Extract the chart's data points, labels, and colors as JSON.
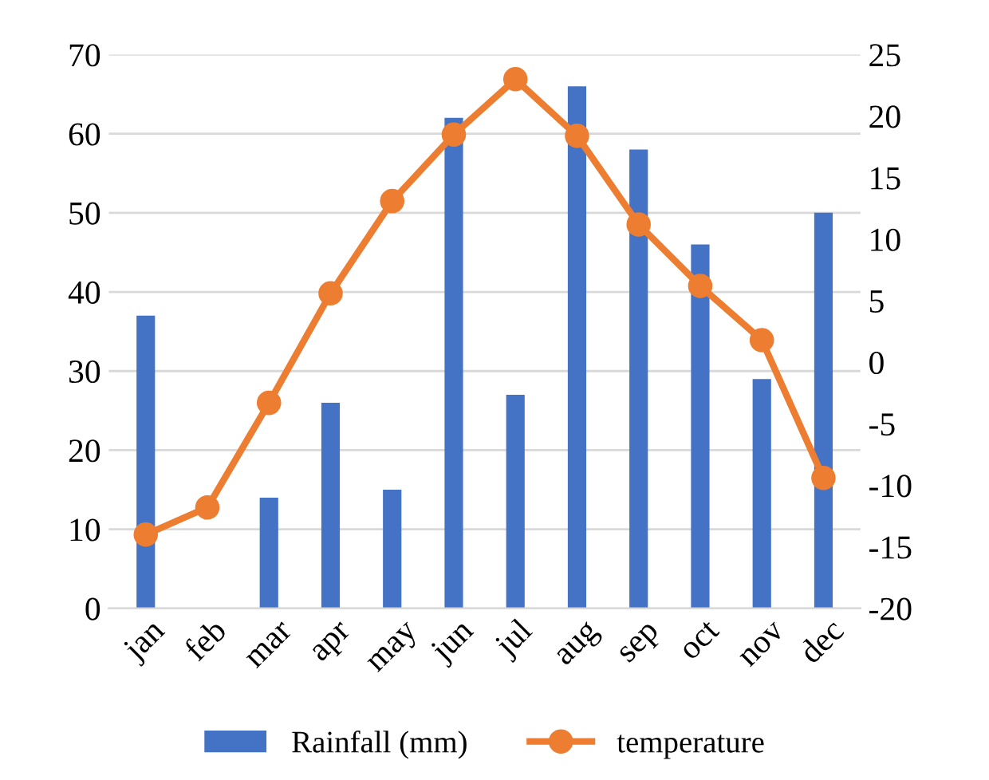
{
  "chart_data": {
    "type": "bar",
    "categories": [
      "jan",
      "feb",
      "mar",
      "apr",
      "may",
      "jun",
      "jul",
      "aug",
      "sep",
      "oct",
      "nov",
      "dec"
    ],
    "series": [
      {
        "name": "Rainfall (mm)",
        "color": "#4472c4",
        "values": [
          37,
          null,
          14,
          26,
          15,
          62,
          27,
          66,
          58,
          46,
          29,
          50
        ]
      },
      {
        "name": "temperature",
        "type": "line",
        "axis": "y2",
        "color": "#ed7d31",
        "marker": "circle",
        "values": [
          -14,
          -11.8,
          -3.3,
          5.6,
          13.1,
          18.5,
          23,
          18.4,
          11.2,
          6.2,
          1.8,
          -9.4
        ]
      }
    ],
    "ylim": [
      0,
      70
    ],
    "yticks": [
      0,
      10,
      20,
      30,
      40,
      50,
      60,
      70
    ],
    "y2lim": [
      -20,
      25
    ],
    "y2ticks": [
      -20,
      -15,
      -10,
      -5,
      0,
      5,
      10,
      15,
      20,
      25
    ],
    "grid": "y",
    "legend": "bottom"
  }
}
